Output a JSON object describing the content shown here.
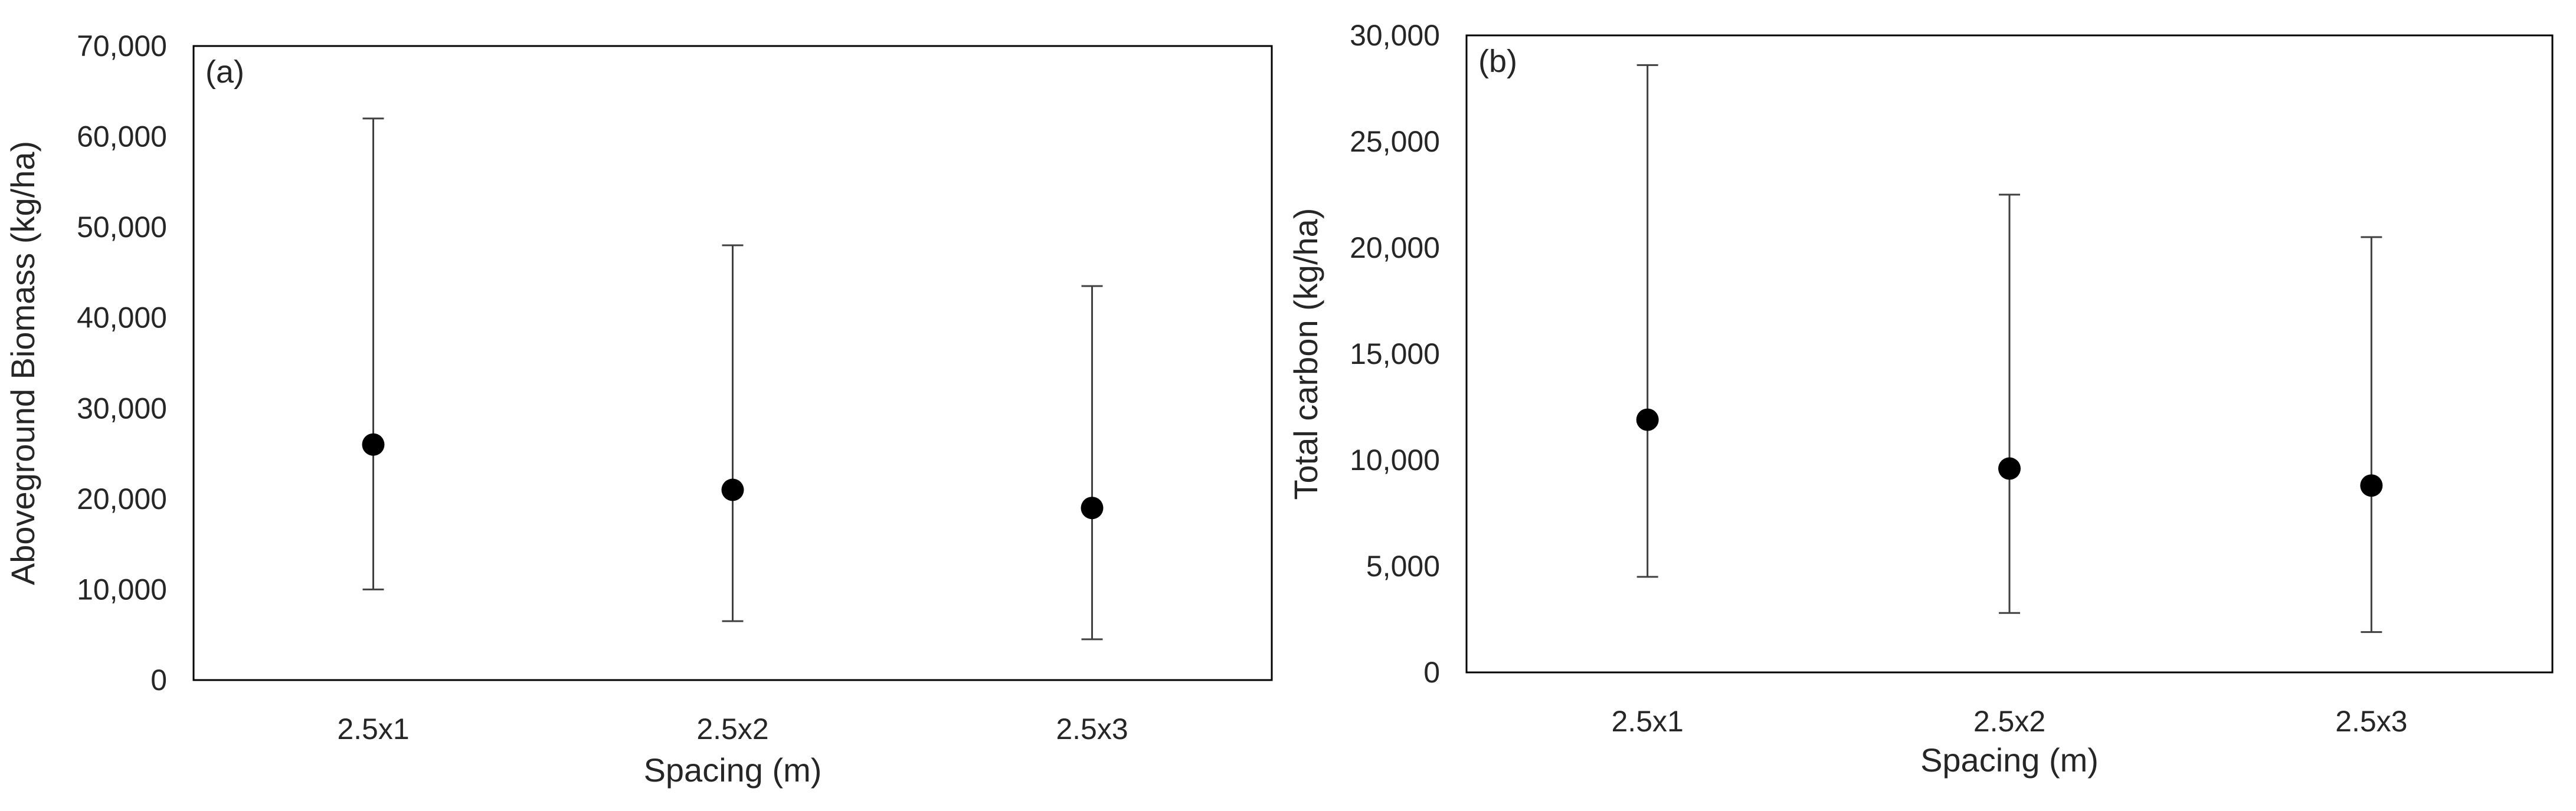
{
  "chart_data": [
    {
      "type": "scatter",
      "panel_label": "(a)",
      "xlabel": "Spacing (m)",
      "ylabel": "Aboveground Biomass (kg/ha)",
      "categories": [
        "2.5x1",
        "2.5x2",
        "2.5x3"
      ],
      "values": [
        26000,
        21000,
        19000
      ],
      "error_low": [
        10000,
        6500,
        4500
      ],
      "error_high": [
        62000,
        48000,
        43500
      ],
      "ylim": [
        0,
        70000
      ],
      "yticks": [
        0,
        10000,
        20000,
        30000,
        40000,
        50000,
        60000,
        70000
      ],
      "ytick_labels": [
        "0",
        "10,000",
        "20,000",
        "30,000",
        "40,000",
        "50,000",
        "60,000",
        "70,000"
      ],
      "grid": false,
      "legend": "none"
    },
    {
      "type": "scatter",
      "panel_label": "(b)",
      "xlabel": "Spacing (m)",
      "ylabel": "Total carbon (kg/ha)",
      "categories": [
        "2.5x1",
        "2.5x2",
        "2.5x3"
      ],
      "values": [
        11900,
        9600,
        8800
      ],
      "error_low": [
        4500,
        2800,
        1900
      ],
      "error_high": [
        28600,
        22500,
        20500
      ],
      "ylim": [
        0,
        30000
      ],
      "yticks": [
        0,
        5000,
        10000,
        15000,
        20000,
        25000,
        30000
      ],
      "ytick_labels": [
        "0",
        "5,000",
        "10,000",
        "15,000",
        "20,000",
        "25,000",
        "30,000"
      ],
      "grid": false,
      "legend": "none"
    }
  ],
  "colors": {
    "marker": "#000000",
    "errorbar": "#404040",
    "frame": "#000000",
    "text": "#262626"
  }
}
